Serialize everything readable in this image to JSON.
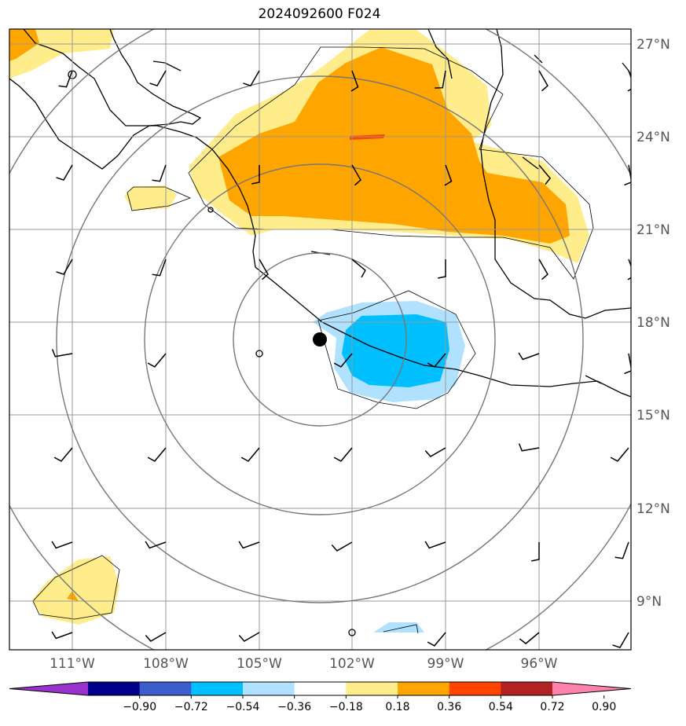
{
  "title": "2024092600 F024",
  "lat_labels": [
    "27°N",
    "24°N",
    "21°N",
    "18°N",
    "15°N",
    "12°N",
    "9°N"
  ],
  "lon_labels": [
    "111°W",
    "108°W",
    "105°W",
    "102°W",
    "99°W",
    "96°W"
  ],
  "colorbar": {
    "ticks": [
      "−0.90",
      "−0.72",
      "−0.54",
      "−0.36",
      "−0.18",
      "0.18",
      "0.36",
      "0.54",
      "0.72",
      "0.90"
    ],
    "colors": [
      "#9932cc",
      "#00008b",
      "#3a5fcd",
      "#00bfff",
      "#b0e2ff",
      "#ffffff",
      "#ffec8b",
      "#ffa500",
      "#ff4500",
      "#b22222",
      "#ff82ab"
    ]
  },
  "storm_center": {
    "lat": 17.4,
    "lon": -103.0
  }
}
